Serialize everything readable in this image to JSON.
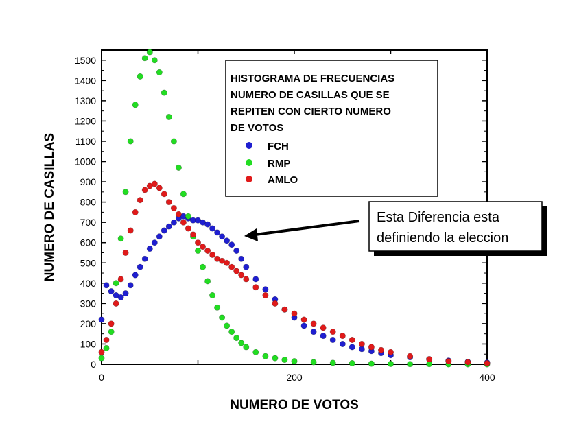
{
  "chart_data": {
    "type": "scatter",
    "title_lines": [
      "HISTOGRAMA DE FRECUENCIAS",
      "NUMERO DE CASILLAS QUE SE",
      "REPITEN CON CIERTO NUMERO",
      "DE VOTOS"
    ],
    "xlabel": "NUMERO DE VOTOS",
    "ylabel": "NUMERO DE CASILLAS",
    "xlim": [
      0,
      400
    ],
    "ylim": [
      0,
      1550
    ],
    "xticks_labeled": [
      0,
      200,
      400
    ],
    "xticks_minor_step": 100,
    "yticks": [
      0,
      100,
      200,
      300,
      400,
      500,
      600,
      700,
      800,
      900,
      1000,
      1100,
      1200,
      1300,
      1400,
      1500
    ],
    "grid": false,
    "legend_position": "top-right",
    "series": [
      {
        "name": "FCH",
        "color": "#1f1fd0",
        "x": [
          0,
          5,
          10,
          15,
          20,
          25,
          30,
          35,
          40,
          45,
          50,
          55,
          60,
          65,
          70,
          75,
          80,
          85,
          90,
          95,
          100,
          105,
          110,
          115,
          120,
          125,
          130,
          135,
          140,
          145,
          150,
          160,
          170,
          180,
          190,
          200,
          210,
          220,
          230,
          240,
          250,
          260,
          270,
          280,
          290,
          300,
          320,
          340,
          360,
          380,
          400
        ],
        "y": [
          220,
          390,
          360,
          340,
          330,
          350,
          390,
          440,
          480,
          520,
          570,
          600,
          630,
          660,
          680,
          700,
          720,
          730,
          720,
          710,
          710,
          700,
          690,
          670,
          650,
          630,
          610,
          590,
          560,
          520,
          480,
          420,
          370,
          320,
          270,
          230,
          190,
          160,
          140,
          120,
          100,
          85,
          75,
          65,
          55,
          45,
          35,
          25,
          18,
          12,
          8
        ]
      },
      {
        "name": "RMP",
        "color": "#22dd22",
        "x": [
          0,
          5,
          10,
          15,
          20,
          25,
          30,
          35,
          40,
          45,
          50,
          55,
          60,
          65,
          70,
          75,
          80,
          85,
          90,
          95,
          100,
          105,
          110,
          115,
          120,
          125,
          130,
          135,
          140,
          145,
          150,
          160,
          170,
          180,
          190,
          200,
          220,
          240,
          260,
          280,
          300,
          320,
          340,
          360,
          380,
          400
        ],
        "y": [
          30,
          80,
          160,
          400,
          620,
          850,
          1100,
          1280,
          1420,
          1510,
          1540,
          1500,
          1440,
          1340,
          1220,
          1100,
          970,
          840,
          730,
          630,
          560,
          480,
          410,
          340,
          280,
          230,
          190,
          160,
          130,
          105,
          85,
          60,
          40,
          30,
          22,
          15,
          10,
          7,
          5,
          3,
          2,
          1,
          1,
          0,
          0,
          0
        ]
      },
      {
        "name": "AMLO",
        "color": "#e01a1a",
        "x": [
          0,
          5,
          10,
          15,
          20,
          25,
          30,
          35,
          40,
          45,
          50,
          55,
          60,
          65,
          70,
          75,
          80,
          85,
          90,
          95,
          100,
          105,
          110,
          115,
          120,
          125,
          130,
          135,
          140,
          145,
          150,
          160,
          170,
          180,
          190,
          200,
          210,
          220,
          230,
          240,
          250,
          260,
          270,
          280,
          290,
          300,
          320,
          340,
          360,
          380,
          400
        ],
        "y": [
          60,
          120,
          200,
          300,
          420,
          550,
          660,
          750,
          810,
          860,
          880,
          890,
          870,
          840,
          800,
          770,
          740,
          700,
          670,
          640,
          600,
          580,
          560,
          540,
          520,
          510,
          500,
          480,
          460,
          440,
          420,
          380,
          340,
          300,
          270,
          250,
          220,
          200,
          180,
          160,
          140,
          120,
          100,
          85,
          70,
          60,
          40,
          25,
          15,
          10,
          5
        ]
      }
    ],
    "annotation": {
      "lines": [
        "Esta Diferencia esta",
        "definiendo la eleccion"
      ]
    }
  }
}
